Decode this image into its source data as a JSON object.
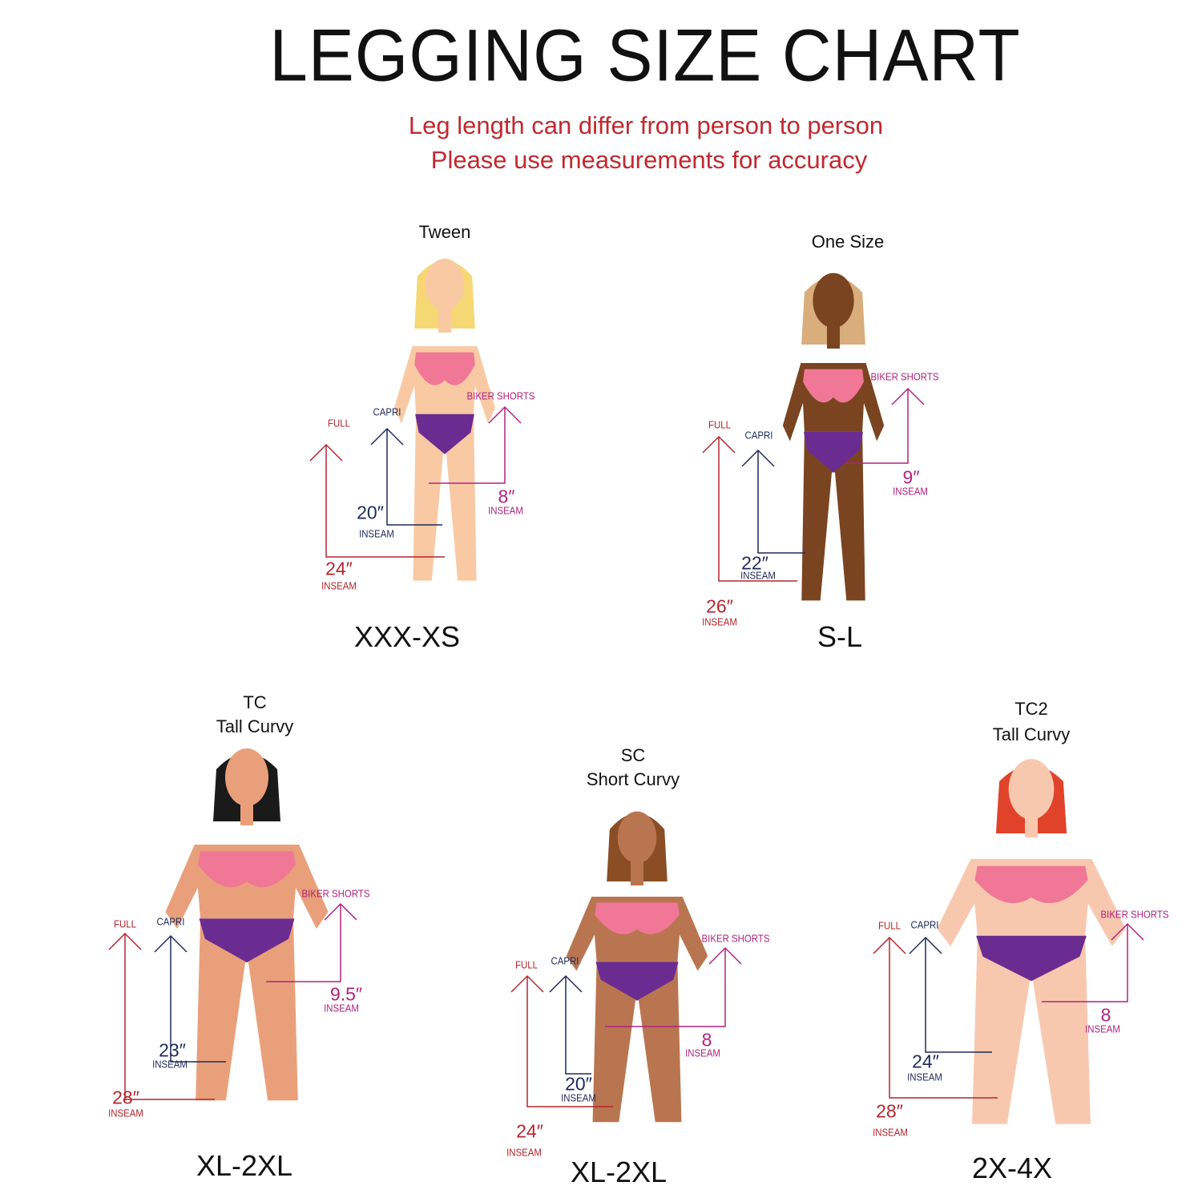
{
  "title": "LEGGING  SIZE CHART",
  "subtitle": [
    "Leg length can differ from person to person",
    "Please use measurements for accuracy"
  ],
  "colors": {
    "full": "#b3262d",
    "capri": "#1f2a5c",
    "biker": "#b0237f",
    "bra": "#f07796",
    "briefs": "#6a2c91"
  },
  "labels": {
    "full": "FULL",
    "capri": "CAPRI",
    "biker": "BIKER SHORTS",
    "inseam": "INSEAM"
  },
  "panels": [
    {
      "title": [
        "Tween"
      ],
      "size": "XXX-XS",
      "full": "24″",
      "capri": "20″",
      "biker": "8″",
      "skin": "#f9c9a4",
      "hair": "#f5d873"
    },
    {
      "title": [
        "One Size"
      ],
      "size": "S-L",
      "full": "26″",
      "capri": "22″",
      "biker": "9″",
      "skin": "#7a4420",
      "hair": "#d9ad7c"
    },
    {
      "title": [
        "TC",
        "Tall Curvy"
      ],
      "size": "XL-2XL",
      "full": "28″",
      "capri": "23″",
      "biker": "9.5″",
      "skin": "#e9a07a",
      "hair": "#1a1a1a"
    },
    {
      "title": [
        "SC",
        "Short Curvy"
      ],
      "size": "XL-2XL",
      "full": "24″",
      "capri": "20″",
      "biker": "8",
      "skin": "#b97550",
      "hair": "#8a4d24"
    },
    {
      "title": [
        "TC2",
        "Tall Curvy"
      ],
      "size": "2X-4X",
      "full": "28″",
      "capri": "24″",
      "biker": "8",
      "skin": "#f8c8ae",
      "hair": "#e0432a"
    }
  ]
}
